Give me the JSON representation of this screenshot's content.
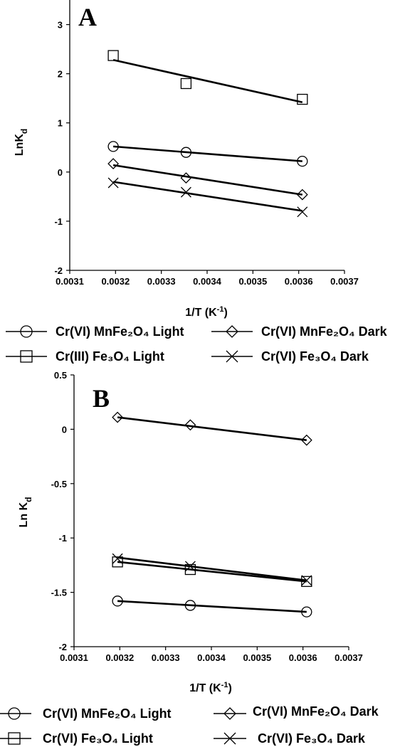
{
  "chart_data": [
    {
      "type": "scatter",
      "panel_label": "A",
      "title": "",
      "xlabel": "1/T (K",
      "xlabel_sup": "-1",
      "xlabel_tail": ")",
      "ylabel": "LnK",
      "ylabel_sub": "d",
      "xlim": [
        0.0031,
        0.0037
      ],
      "ylim": [
        -2,
        3.5
      ],
      "xticks": [
        "0.0031",
        "0.0032",
        "0.0033",
        "0.0034",
        "0.0035",
        "0.0036",
        "0.0037"
      ],
      "yticks": [
        "-2",
        "-1",
        "0",
        "1",
        "2",
        "3"
      ],
      "grid": false,
      "legend_position": "below",
      "series": [
        {
          "name": "Cr(VI) MnFe₂O₄ Light",
          "marker": "circle",
          "x": [
            0.003195,
            0.003354,
            0.003608
          ],
          "y": [
            0.52,
            0.4,
            0.22
          ],
          "fit": [
            [
              0.003195,
              0.52
            ],
            [
              0.003608,
              0.22
            ]
          ]
        },
        {
          "name": "Cr(VI) MnFe₂O₄ Dark",
          "marker": "diamond",
          "x": [
            0.003195,
            0.003354,
            0.003608
          ],
          "y": [
            0.17,
            -0.12,
            -0.46
          ],
          "fit": [
            [
              0.003195,
              0.14
            ],
            [
              0.003608,
              -0.46
            ]
          ]
        },
        {
          "name": "Cr(III) Fe₃O₄ Light",
          "marker": "square",
          "x": [
            0.003195,
            0.003354,
            0.003608
          ],
          "y": [
            2.37,
            1.8,
            1.48
          ],
          "fit": [
            [
              0.003195,
              2.28
            ],
            [
              0.003608,
              1.42
            ]
          ]
        },
        {
          "name": "Cr(VI) Fe₃O₄ Dark",
          "marker": "cross",
          "x": [
            0.003195,
            0.003354,
            0.003608
          ],
          "y": [
            -0.22,
            -0.41,
            -0.81
          ],
          "fit": [
            [
              0.003195,
              -0.2
            ],
            [
              0.003608,
              -0.79
            ]
          ]
        }
      ]
    },
    {
      "type": "scatter",
      "panel_label": "B",
      "title": "",
      "xlabel": "1/T (K",
      "xlabel_sup": "-1",
      "xlabel_tail": ")",
      "ylabel": "Ln K",
      "ylabel_sub": "d",
      "xlim": [
        0.0031,
        0.0037
      ],
      "ylim": [
        -2,
        0.5
      ],
      "xticks": [
        "0.0031",
        "0.0032",
        "0.0033",
        "0.0034",
        "0.0035",
        "0.0036",
        "0.0037"
      ],
      "yticks": [
        "-2",
        "-1.5",
        "-1",
        "-0.5",
        "0",
        "0.5"
      ],
      "grid": false,
      "legend_position": "below",
      "series": [
        {
          "name": "Cr(VI) MnFe₂O₄ Light",
          "marker": "circle",
          "x": [
            0.003195,
            0.003354,
            0.003608
          ],
          "y": [
            -1.58,
            -1.62,
            -1.68
          ],
          "fit": [
            [
              0.003195,
              -1.58
            ],
            [
              0.003608,
              -1.68
            ]
          ]
        },
        {
          "name": "Cr(VI) MnFe₂O₄ Dark",
          "marker": "diamond",
          "x": [
            0.003195,
            0.003354,
            0.003608
          ],
          "y": [
            0.11,
            0.04,
            -0.1
          ],
          "fit": [
            [
              0.003195,
              0.11
            ],
            [
              0.003608,
              -0.1
            ]
          ]
        },
        {
          "name": "Cr(VI) Fe₃O₄ Light",
          "marker": "square",
          "x": [
            0.003195,
            0.003354,
            0.003608
          ],
          "y": [
            -1.22,
            -1.29,
            -1.4
          ],
          "fit": [
            [
              0.003195,
              -1.22
            ],
            [
              0.003608,
              -1.4
            ]
          ]
        },
        {
          "name": "Cr(VI) Fe₃O₄ Dark",
          "marker": "cross",
          "x": [
            0.003195,
            0.003354,
            0.003608
          ],
          "y": [
            -1.19,
            -1.26,
            -1.39
          ],
          "fit": [
            [
              0.003195,
              -1.18
            ],
            [
              0.003608,
              -1.39
            ]
          ]
        }
      ]
    }
  ],
  "legend_A": {
    "row1_left": "Cr(VI) MnFe₂O₄ Light",
    "row1_right": "Cr(VI) MnFe₂O₄ Dark",
    "row2_left": "Cr(III) Fe₃O₄ Light",
    "row2_right": "Cr(VI) Fe₃O₄ Dark"
  },
  "legend_B": {
    "row1_left": "Cr(VI) MnFe₂O₄ Light",
    "row1_right": "Cr(VI) MnFe₂O₄ Dark",
    "row2_left": "Cr(VI) Fe₃O₄ Light",
    "row2_right": "Cr(VI) Fe₃O₄ Dark"
  }
}
